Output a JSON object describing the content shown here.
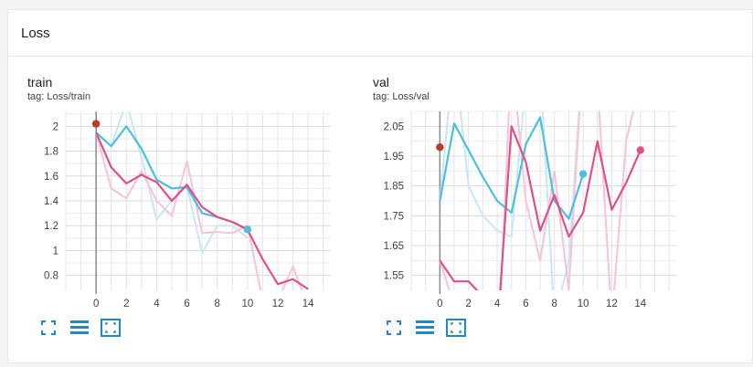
{
  "section": {
    "title": "Loss"
  },
  "colors": {
    "pink": "#e0508a",
    "blue": "#4dbfe0",
    "pink_light": "#f7c3d6",
    "blue_light": "#c7e8f3",
    "dot_red": "#c0392b"
  },
  "toolbar_icons": [
    "fullscreen-icon",
    "lines-icon",
    "fit-domain-icon"
  ],
  "chart_data": [
    {
      "type": "line",
      "title": "train",
      "tag": "tag: Loss/train",
      "xlim": [
        -2,
        15.5
      ],
      "ylim": [
        0.68,
        2.12
      ],
      "xticks": [
        0,
        2,
        4,
        6,
        8,
        10,
        12,
        14
      ],
      "yticks": [
        0.8,
        1,
        1.2,
        1.4,
        1.6,
        1.8,
        2
      ],
      "ytick_labels": [
        "0.8",
        "1",
        "1.2",
        "1.4",
        "1.6",
        "1.8",
        "2"
      ],
      "grid": true,
      "series": [
        {
          "color": "#4dbfe0",
          "x": [
            0,
            1,
            2,
            3,
            4,
            5,
            6,
            7,
            8,
            9,
            10
          ],
          "y": [
            1.95,
            1.84,
            2.0,
            1.82,
            1.57,
            1.5,
            1.51,
            1.3,
            1.27,
            1.23,
            1.17
          ],
          "raw": [
            1.95,
            1.84,
            2.2,
            1.75,
            1.25,
            1.4,
            1.52,
            0.98,
            1.2,
            1.2,
            1.1
          ],
          "marker": "end"
        },
        {
          "color": "#e0508a",
          "x": [
            0,
            1,
            2,
            3,
            4,
            5,
            6,
            7,
            8,
            9,
            10,
            11,
            12,
            13,
            14
          ],
          "y": [
            1.95,
            1.67,
            1.54,
            1.61,
            1.55,
            1.4,
            1.53,
            1.35,
            1.27,
            1.23,
            1.17,
            0.93,
            0.73,
            0.77,
            0.69
          ],
          "raw": [
            1.95,
            1.5,
            1.42,
            1.64,
            1.4,
            1.28,
            1.72,
            1.14,
            1.15,
            1.14,
            1.2,
            0.6,
            0.6,
            0.87,
            0.55
          ]
        }
      ],
      "start_point": {
        "x": 0,
        "y": 2.02
      }
    },
    {
      "type": "line",
      "title": "val",
      "tag": "tag: Loss/val",
      "xlim": [
        -2,
        16.5
      ],
      "ylim": [
        1.5,
        2.1
      ],
      "xticks": [
        0,
        2,
        4,
        6,
        8,
        10,
        12,
        14
      ],
      "yticks": [
        1.55,
        1.65,
        1.75,
        1.85,
        1.95,
        2.05
      ],
      "ytick_labels": [
        "1.55",
        "1.65",
        "1.75",
        "1.85",
        "1.95",
        "2.05"
      ],
      "grid": true,
      "series": [
        {
          "color": "#4dbfe0",
          "x": [
            0,
            1,
            2,
            3,
            4,
            5,
            6,
            7,
            8,
            9,
            10
          ],
          "y": [
            1.8,
            2.06,
            1.97,
            1.88,
            1.8,
            1.76,
            1.99,
            2.08,
            1.8,
            1.74,
            1.89
          ],
          "raw": [
            1.8,
            2.3,
            1.85,
            1.75,
            1.7,
            1.68,
            2.2,
            2.25,
            1.4,
            1.6,
            2.3
          ],
          "marker": "end"
        },
        {
          "color": "#e0508a",
          "x": [
            0,
            1,
            2,
            3,
            4,
            5,
            6,
            7,
            8,
            9,
            10,
            11,
            12,
            13,
            14
          ],
          "y": [
            1.6,
            1.53,
            1.53,
            1.48,
            1.35,
            2.05,
            1.93,
            1.7,
            1.82,
            1.68,
            1.76,
            2.0,
            1.77,
            1.86,
            1.97
          ],
          "raw": [
            1.6,
            1.45,
            1.5,
            1.4,
            1.2,
            2.3,
            1.8,
            1.6,
            1.9,
            1.5,
            2.3,
            2.2,
            1.4,
            2.0,
            2.2
          ],
          "marker": "end"
        }
      ],
      "start_point": {
        "x": 0,
        "y": 1.98
      }
    }
  ]
}
